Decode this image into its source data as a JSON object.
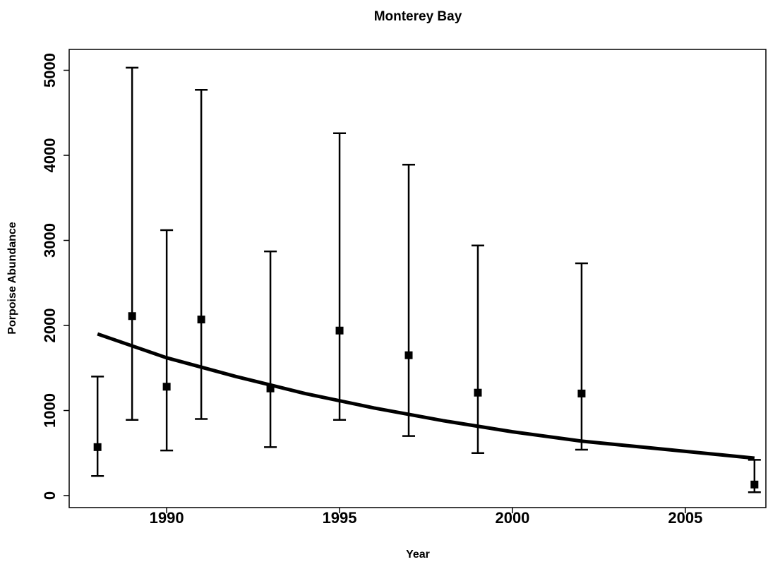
{
  "chart_data": {
    "type": "errorbar",
    "title": "Monterey Bay",
    "x_label": "Year",
    "y_label": "Porpoise Abundance",
    "x": [
      1988,
      1989,
      1990,
      1991,
      1993,
      1995,
      1997,
      1999,
      2002,
      2007
    ],
    "values": [
      570,
      2110,
      1280,
      2070,
      1260,
      1940,
      1650,
      1210,
      1200,
      130
    ],
    "lower": [
      230,
      890,
      530,
      900,
      570,
      890,
      700,
      500,
      540,
      40
    ],
    "upper": [
      1400,
      5030,
      3120,
      4770,
      2870,
      4260,
      3890,
      2940,
      2730,
      420
    ],
    "color": "#000000",
    "fit": {
      "x": [
        1988,
        1990,
        1992,
        1994,
        1996,
        1998,
        2000,
        2002,
        2004,
        2006,
        2007
      ],
      "values": [
        1900,
        1620,
        1400,
        1200,
        1030,
        880,
        750,
        640,
        560,
        480,
        440
      ]
    },
    "xlim": [
      1987.18,
      2007.33
    ],
    "xticks": [
      1990,
      1995,
      2000,
      2005
    ],
    "ylim": [
      -141,
      5245
    ],
    "yticks": [
      0,
      1000,
      2000,
      3000,
      4000,
      5000
    ],
    "grid": false
  }
}
